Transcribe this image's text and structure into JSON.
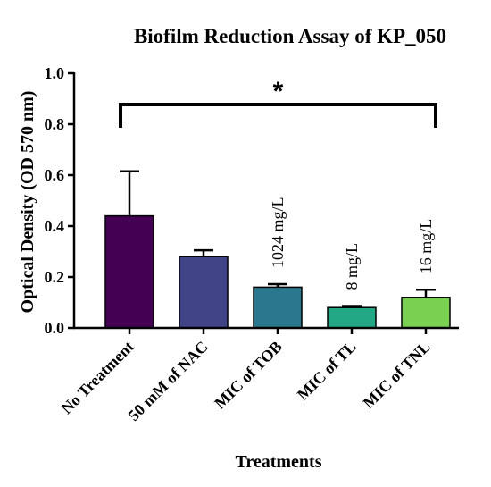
{
  "chart_data": {
    "type": "bar",
    "title": "Biofilm Reduction Assay of KP_050",
    "xlabel": "Treatments",
    "ylabel": "Optical Density (OD 570 nm)",
    "ylim": [
      0,
      1.0
    ],
    "yticks": [
      0.0,
      0.2,
      0.4,
      0.6,
      0.8,
      1.0
    ],
    "ytick_labels": [
      "0.0",
      "0.2",
      "0.4",
      "0.6",
      "0.8",
      "1.0"
    ],
    "categories": [
      "No Treatment",
      "50 mM of NAC",
      "MIC of TOB",
      "MIC of TL",
      "MIC of TNL"
    ],
    "values": [
      0.44,
      0.28,
      0.16,
      0.08,
      0.12
    ],
    "errors": [
      0.175,
      0.025,
      0.012,
      0.006,
      0.03
    ],
    "colors": [
      "#440154",
      "#414487",
      "#2a788e",
      "#22a884",
      "#7ad151"
    ],
    "bar_annotations": [
      "",
      "",
      "1024 mg/L",
      "8 mg/L",
      "16 mg/L"
    ],
    "significance": {
      "label": "*",
      "from_category": "No Treatment",
      "to_category": "MIC of TNL"
    },
    "grid": false,
    "legend": "none"
  }
}
